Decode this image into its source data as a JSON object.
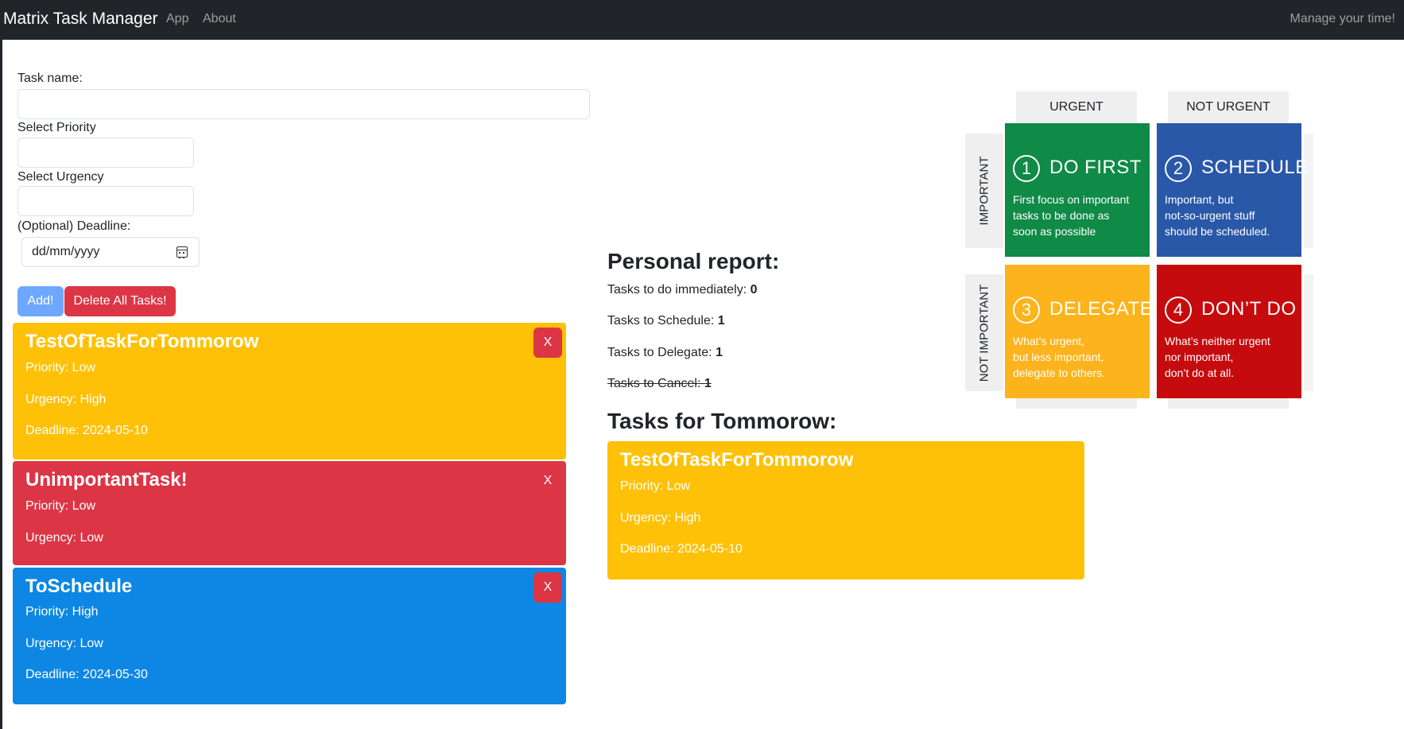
{
  "nav": {
    "brand": "Matrix Task Manager",
    "links": [
      "App",
      "About"
    ],
    "tagline": "Manage your time!"
  },
  "form": {
    "task_name_label": "Task name:",
    "task_name_value": "",
    "priority_label": "Select Priority",
    "priority_value": "",
    "urgency_label": "Select Urgency",
    "urgency_value": "",
    "deadline_label": "(Optional) Deadline:",
    "deadline_placeholder": "dd/mm/yyyy",
    "add_label": "Add!",
    "delete_all_label": "Delete All Tasks!"
  },
  "tasks": [
    {
      "title": "TestOfTaskForTommorow",
      "priority": "Priority: Low",
      "urgency": "Urgency: High",
      "deadline": "Deadline: 2024-05-10",
      "color": "#ffc107",
      "close": "X"
    },
    {
      "title": "UnimportantTask!",
      "priority": "Priority: Low",
      "urgency": "Urgency: Low",
      "color": "#dc3545",
      "close": "X"
    },
    {
      "title": "ToSchedule",
      "priority": "Priority: High",
      "urgency": "Urgency: Low",
      "deadline": "Deadline: 2024-05-30",
      "color": "#0d87e3",
      "close": "X"
    }
  ],
  "report": {
    "title": "Personal report:",
    "lines": [
      {
        "label": "Tasks to do immediately:",
        "value": "0"
      },
      {
        "label": "Tasks to Schedule:",
        "value": "1"
      },
      {
        "label": "Tasks to Delegate:",
        "value": "1"
      },
      {
        "label": "Tasks to Cancel:",
        "value": "1"
      }
    ]
  },
  "tomorrow": {
    "title": "Tasks for Tommorow:",
    "task": {
      "title": "TestOfTaskForTommorow",
      "priority": "Priority: Low",
      "urgency": "Urgency: High",
      "deadline": "Deadline: 2024-05-10"
    }
  },
  "matrix": {
    "col_headers": [
      "URGENT",
      "NOT URGENT"
    ],
    "row_headers": [
      "IMPORTANT",
      "NOT IMPORTANT"
    ],
    "quadrants": [
      {
        "num": "1",
        "title": "DO FIRST",
        "lines": [
          "First focus on important",
          "tasks to be done as",
          "soon as possible"
        ],
        "color": "#0f8a47"
      },
      {
        "num": "2",
        "title": "SCHEDULE",
        "lines": [
          "Important, but",
          "not-so-urgent stuff",
          "should be scheduled."
        ],
        "color": "#2a58a8"
      },
      {
        "num": "3",
        "title": "DELEGATE",
        "lines": [
          "What’s urgent,",
          "but less important,",
          "delegate to others."
        ],
        "color": "#fcb31c"
      },
      {
        "num": "4",
        "title": "DON’T DO",
        "lines": [
          "What’s neither urgent",
          "nor important,",
          "don’t do at all."
        ],
        "color": "#c60b0e"
      }
    ]
  }
}
